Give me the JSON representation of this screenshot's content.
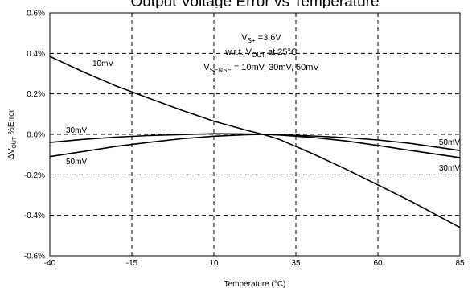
{
  "chart_data": {
    "type": "line",
    "title": "Output Voltage Error vs Temperature",
    "xlabel": "Temperature (°C)",
    "ylabel_parts": {
      "pre": "ΔV",
      "sub": "OUT",
      "post": " %Error"
    },
    "xlim": [
      -40,
      85
    ],
    "ylim": [
      -0.6,
      0.6
    ],
    "x_ticks": [
      -40,
      -15,
      10,
      35,
      60,
      85
    ],
    "y_ticks": [
      -0.6,
      -0.4,
      -0.2,
      0.0,
      0.2,
      0.4,
      0.6
    ],
    "grid": true,
    "annotation_lines": [
      [
        {
          "t": "V"
        },
        {
          "t": "S+",
          "sub": true
        },
        {
          "t": " =3.6V"
        }
      ],
      [
        {
          "t": "w.r.t. V"
        },
        {
          "t": "OUT",
          "sub": true
        },
        {
          "t": " at 25°C"
        }
      ],
      [
        {
          "t": "V"
        },
        {
          "t": "SENSE",
          "sub": true
        },
        {
          "t": " = 10mV, 30mV, 50mV"
        }
      ]
    ],
    "series": [
      {
        "name": "10mV",
        "x": [
          -40,
          -30,
          -20,
          -10,
          0,
          10,
          20,
          25,
          30,
          40,
          50,
          60,
          70,
          85
        ],
        "y": [
          0.385,
          0.31,
          0.24,
          0.18,
          0.12,
          0.065,
          0.02,
          0.0,
          -0.025,
          -0.095,
          -0.17,
          -0.25,
          -0.33,
          -0.46
        ]
      },
      {
        "name": "30mV",
        "x": [
          -40,
          -30,
          -20,
          -10,
          0,
          10,
          20,
          25,
          30,
          40,
          50,
          60,
          70,
          85
        ],
        "y": [
          -0.04,
          -0.025,
          -0.014,
          -0.006,
          -0.001,
          0.003,
          0.002,
          0.0,
          -0.002,
          -0.008,
          -0.016,
          -0.028,
          -0.045,
          -0.08
        ]
      },
      {
        "name": "50mV",
        "x": [
          -40,
          -30,
          -20,
          -10,
          0,
          10,
          20,
          25,
          30,
          40,
          50,
          60,
          70,
          85
        ],
        "y": [
          -0.11,
          -0.085,
          -0.06,
          -0.04,
          -0.022,
          -0.009,
          -0.002,
          0.0,
          -0.003,
          -0.015,
          -0.032,
          -0.055,
          -0.08,
          -0.115
        ]
      }
    ]
  }
}
